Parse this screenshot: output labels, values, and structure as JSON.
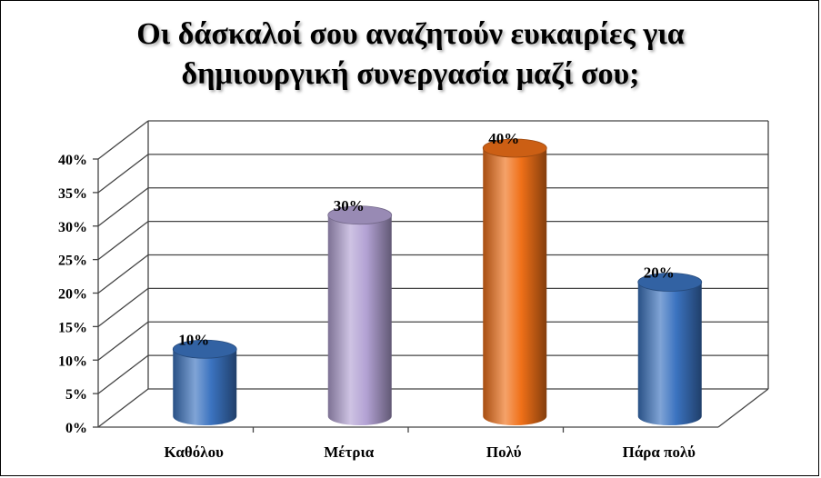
{
  "chart_data": {
    "type": "bar",
    "title_lines": [
      "Οι δάσκαλοί σου αναζητούν ευκαιρίες για",
      "δημιουργική συνεργασία μαζί σου;"
    ],
    "categories": [
      "Καθόλου",
      "Μέτρια",
      "Πολύ",
      "Πάρα πολύ"
    ],
    "values": [
      10,
      30,
      40,
      20
    ],
    "data_labels": [
      "10%",
      "30%",
      "40%",
      "20%"
    ],
    "value_format": "percent",
    "ylim": [
      0,
      40
    ],
    "ytick_step": 5,
    "yticks": [
      "0%",
      "5%",
      "10%",
      "15%",
      "20%",
      "25%",
      "30%",
      "35%",
      "40%"
    ],
    "grid": true,
    "style": "3d-cylinder",
    "colors": [
      "#3b73c0",
      "#b3a2d4",
      "#f07018",
      "#3b73c0"
    ],
    "xlabel": "",
    "ylabel": ""
  }
}
